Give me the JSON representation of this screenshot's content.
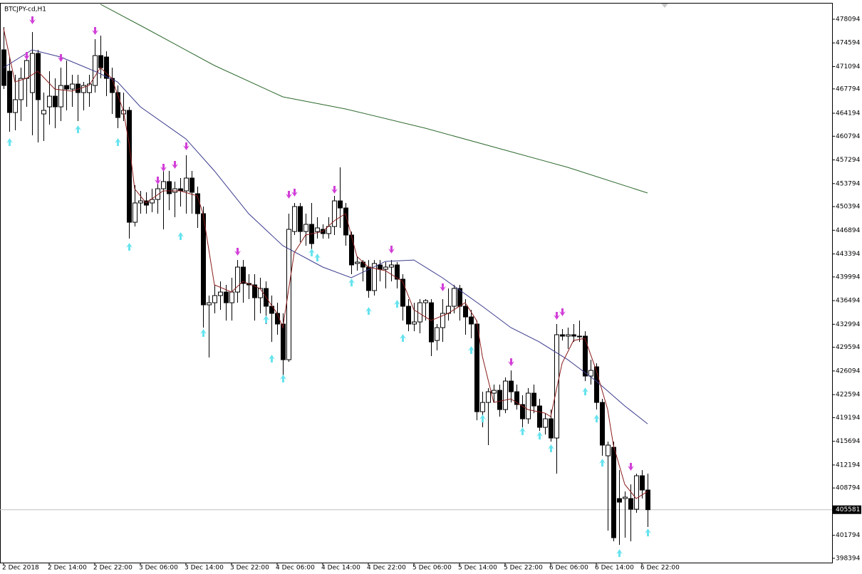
{
  "chart_data": {
    "type": "candlestick",
    "title": "BTCJPY-cd,H1",
    "categories": [
      "2 Dec 2018",
      null,
      null,
      null,
      null,
      null,
      null,
      null,
      "2 Dec 14:00",
      null,
      null,
      null,
      null,
      null,
      null,
      null,
      "2 Dec 22:00",
      null,
      null,
      null,
      null,
      null,
      null,
      null,
      "3 Dec 06:00",
      null,
      null,
      null,
      null,
      null,
      null,
      null,
      "3 Dec 14:00",
      null,
      null,
      null,
      null,
      null,
      null,
      null,
      "3 Dec 22:00",
      null,
      null,
      null,
      null,
      null,
      null,
      null,
      "4 Dec 06:00",
      null,
      null,
      null,
      null,
      null,
      null,
      null,
      "4 Dec 14:00",
      null,
      null,
      null,
      null,
      null,
      null,
      null,
      "4 Dec 22:00",
      null,
      null,
      null,
      null,
      null,
      null,
      null,
      "5 Dec 06:00",
      null,
      null,
      null,
      null,
      null,
      null,
      null,
      "5 Dec 14:00",
      null,
      null,
      null,
      null,
      null,
      null,
      null,
      "5 Dec 22:00",
      null,
      null,
      null,
      null,
      null,
      null,
      null,
      "6 Dec 06:00",
      null,
      null,
      null,
      null,
      null,
      null,
      null,
      "6 Dec 14:00",
      null,
      null,
      null,
      null,
      null,
      null,
      null,
      "6 Dec 22:00",
      null
    ],
    "open": [
      473570,
      470410,
      464300,
      466200,
      469350,
      467250,
      473040,
      464090,
      465140,
      466720,
      465140,
      468300,
      467770,
      468510,
      467250,
      467250,
      468300,
      472720,
      472510,
      469350,
      467250,
      464090,
      464620,
      448080,
      450930,
      451240,
      450930,
      451450,
      453030,
      454090,
      452510,
      453030,
      452720,
      454610,
      452300,
      449350,
      435870,
      436180,
      437240,
      437760,
      436180,
      437760,
      441450,
      439030,
      438820,
      436920,
      438290,
      435660,
      434610,
      433030,
      427760,
      446710,
      450400,
      446710,
      447770,
      446710,
      447030,
      446400,
      447450,
      451240,
      450190,
      446190,
      441980,
      442190,
      441450,
      437980,
      441770,
      441130,
      441450,
      441770,
      439660,
      435660,
      433030,
      433340,
      436180,
      436180,
      430600,
      432500,
      434610,
      435660,
      438290,
      435660,
      434080,
      433030,
      420070,
      421440,
      422810,
      423230,
      420390,
      424600,
      423020,
      421130,
      419020,
      422810,
      420920,
      417760,
      419020,
      416180,
      431450,
      431240,
      431450,
      431240,
      431240,
      425340,
      426710,
      421440,
      413550,
      414810,
      407230,
      407230,
      407230,
      405650,
      410600,
      408490
    ],
    "high": [
      476940,
      472510,
      469880,
      470930,
      473040,
      476200,
      473570,
      467250,
      470410,
      469350,
      470930,
      471990,
      469880,
      469880,
      468830,
      469880,
      475150,
      475670,
      473360,
      470930,
      468300,
      467250,
      465140,
      453560,
      452720,
      452510,
      453030,
      454610,
      455670,
      455670,
      454090,
      454610,
      457980,
      455670,
      453350,
      450400,
      437240,
      438820,
      439340,
      438820,
      439870,
      442500,
      442500,
      440400,
      440400,
      439870,
      439340,
      437240,
      436180,
      434610,
      449350,
      450930,
      450930,
      449350,
      450930,
      448820,
      447770,
      448820,
      451980,
      456190,
      450930,
      446710,
      443030,
      442500,
      442500,
      442500,
      442500,
      442190,
      442500,
      442190,
      440400,
      436710,
      436180,
      436710,
      436710,
      436710,
      433030,
      436710,
      438290,
      438820,
      438820,
      436710,
      435130,
      433550,
      423020,
      423550,
      424080,
      424080,
      425130,
      426180,
      424080,
      422500,
      423550,
      424080,
      421970,
      419860,
      420390,
      433030,
      432290,
      432500,
      433030,
      433550,
      431970,
      427760,
      427230,
      421970,
      415650,
      415650,
      411440,
      408280,
      409330,
      410910,
      411440,
      410910
    ],
    "low": [
      467770,
      461460,
      461670,
      463040,
      465140,
      460930,
      459880,
      460090,
      462510,
      461980,
      463040,
      464620,
      465140,
      463040,
      464620,
      465140,
      467250,
      469350,
      466720,
      464090,
      461980,
      463040,
      445660,
      447450,
      449350,
      449350,
      449560,
      449350,
      447030,
      449870,
      448820,
      450400,
      449350,
      449350,
      447240,
      432500,
      428080,
      434610,
      435130,
      433550,
      433550,
      436180,
      436180,
      436710,
      433550,
      434610,
      433030,
      430390,
      431450,
      425130,
      427440,
      446190,
      445140,
      444610,
      444080,
      445660,
      445660,
      445660,
      446190,
      447240,
      444610,
      440400,
      440920,
      439340,
      436920,
      437240,
      439340,
      438290,
      439340,
      438290,
      433550,
      431970,
      431970,
      431660,
      433550,
      428290,
      429130,
      430390,
      433550,
      434610,
      433550,
      431450,
      430920,
      418810,
      417760,
      415130,
      421440,
      419340,
      419860,
      421440,
      420390,
      417760,
      418280,
      419860,
      417230,
      416700,
      415650,
      410910,
      430600,
      429340,
      430390,
      430390,
      424600,
      424080,
      420390,
      413550,
      402490,
      400910,
      400380,
      401440,
      400910,
      405120,
      407230,
      403020
    ],
    "close": [
      468300,
      464300,
      466200,
      469350,
      471990,
      473040,
      466200,
      464620,
      466720,
      465140,
      468300,
      467770,
      468510,
      467250,
      468300,
      468510,
      472720,
      470930,
      469350,
      467250,
      463560,
      464620,
      448080,
      450930,
      451240,
      450610,
      451450,
      453030,
      454090,
      452300,
      453030,
      452720,
      454610,
      452510,
      449350,
      435870,
      436180,
      437240,
      437760,
      436180,
      437760,
      441450,
      439030,
      438820,
      436920,
      438290,
      435660,
      434610,
      433030,
      427760,
      447030,
      450400,
      446710,
      447770,
      444920,
      447240,
      446400,
      447450,
      451240,
      450190,
      446190,
      441770,
      442190,
      441450,
      437980,
      441980,
      441130,
      441450,
      441770,
      439660,
      435660,
      433030,
      433340,
      436180,
      436500,
      430390,
      432500,
      434610,
      435660,
      438290,
      435660,
      434080,
      433030,
      420070,
      421440,
      423020,
      423230,
      420390,
      424600,
      423020,
      421130,
      419020,
      422810,
      420920,
      417760,
      419020,
      416180,
      431450,
      431240,
      431450,
      431240,
      431240,
      425340,
      426180,
      421440,
      415130,
      415130,
      401440,
      406700,
      407440,
      405650,
      410600,
      408490,
      405581
    ],
    "bull_color": "#ffffff",
    "bear_color": "#000000",
    "series": [
      {
        "color": "#2f6a2f",
        "x": [
          17,
          25,
          37,
          49,
          60,
          74,
          89,
          99,
          113
        ],
        "values": [
          480310,
          476720,
          471250,
          466620,
          464830,
          461980,
          458510,
          456190,
          452400
        ]
      },
      {
        "color": "#3b3b8e",
        "x": [
          0,
          5,
          10,
          16,
          20,
          24,
          32,
          37,
          43,
          49,
          56,
          61,
          67,
          72,
          77,
          84,
          89,
          94,
          99,
          104,
          109,
          113
        ],
        "values": [
          470930,
          473570,
          472510,
          470410,
          468830,
          465140,
          460400,
          455670,
          449350,
          444610,
          441450,
          439870,
          442290,
          442500,
          439870,
          435660,
          432500,
          430390,
          427760,
          424600,
          420920,
          418280
        ]
      },
      {
        "color": "#8b1c1c",
        "x": [
          0,
          2,
          4,
          6,
          9,
          12,
          15,
          17,
          19,
          21,
          22,
          23,
          25,
          28,
          31,
          34,
          35,
          37,
          40,
          42,
          45,
          48,
          49,
          51,
          53,
          56,
          58,
          60,
          62,
          64,
          67,
          70,
          72,
          75,
          78,
          81,
          83,
          84,
          86,
          89,
          92,
          95,
          96,
          98,
          100,
          102,
          104,
          106,
          107,
          109,
          111,
          113
        ],
        "values": [
          476720,
          468830,
          469350,
          470410,
          467770,
          467460,
          468300,
          470930,
          469350,
          464620,
          459880,
          453030,
          450930,
          452720,
          452720,
          451980,
          449350,
          438820,
          437760,
          439340,
          438290,
          434610,
          432500,
          443560,
          446190,
          446710,
          448290,
          449350,
          443030,
          441450,
          440920,
          439340,
          435130,
          433550,
          434610,
          436180,
          433550,
          428290,
          421440,
          421970,
          420390,
          419860,
          419340,
          427230,
          430600,
          430920,
          426180,
          420390,
          415130,
          409330,
          407230,
          408280
        ]
      }
    ],
    "signals": {
      "down": {
        "color": "#d23fd8",
        "x": [
          5,
          4,
          10,
          16,
          27,
          28,
          30,
          32,
          41,
          50,
          51,
          58,
          68,
          77,
          97,
          98,
          89,
          110
        ],
        "values": [
          477780,
          472510,
          472200,
          476200,
          454090,
          455980,
          456400,
          459140,
          443560,
          451980,
          452300,
          452720,
          443870,
          438290,
          434080,
          434610,
          427230,
          411760
        ]
      },
      "up": {
        "color": "#66e3ee",
        "x": [
          1,
          13,
          20,
          22,
          31,
          35,
          46,
          47,
          49,
          54,
          55,
          61,
          64,
          69,
          70,
          82,
          84,
          91,
          94,
          96,
          102,
          104,
          105,
          108,
          113
        ],
        "values": [
          460090,
          461980,
          460090,
          444610,
          446190,
          431870,
          433870,
          428080,
          425130,
          443770,
          443030,
          439340,
          435130,
          436180,
          431130,
          429340,
          419230,
          417340,
          416700,
          414810,
          423230,
          419230,
          412700,
          399330,
          402380
        ]
      }
    },
    "current_price": 405581,
    "ylim": [
      397760,
      480410
    ],
    "yticks": [
      478094,
      474594,
      471094,
      467794,
      464194,
      460794,
      457294,
      453794,
      450394,
      446894,
      443394,
      439994,
      436494,
      432994,
      429594,
      426094,
      422594,
      419194,
      415694,
      412194,
      408794,
      401794,
      398394
    ]
  }
}
